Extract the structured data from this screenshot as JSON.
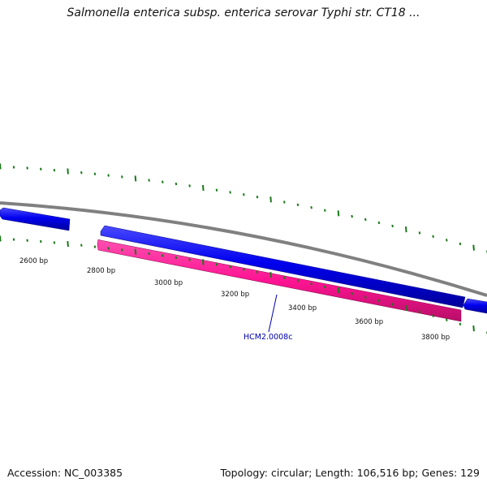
{
  "title": "Salmonella enterica subsp. enterica serovar Typhi str. CT18 ...",
  "footer": {
    "accession": "Accession: NC_003385",
    "summary": "Topology: circular; Length: 106,516 bp; Genes: 129"
  },
  "ruler": {
    "labels": [
      "2600 bp",
      "2800 bp",
      "3000 bp",
      "3200 bp",
      "3400 bp",
      "3600 bp",
      "3800 bp"
    ]
  },
  "genes": [
    {
      "strand": "forward",
      "color": "#0000ee",
      "label": ""
    },
    {
      "strand": "forward",
      "color": "#0000ee",
      "label": ""
    },
    {
      "strand": "reverse",
      "color": "#ff1493",
      "label": "HCM2.0008c"
    },
    {
      "strand": "forward",
      "color": "#0000ee",
      "label": ""
    }
  ],
  "colors": {
    "backbone": "#808080",
    "ticks": "#1a7a1a",
    "forward_gene": "#0000ee",
    "reverse_gene": "#ff1493",
    "gene_label": "#0000aa"
  }
}
